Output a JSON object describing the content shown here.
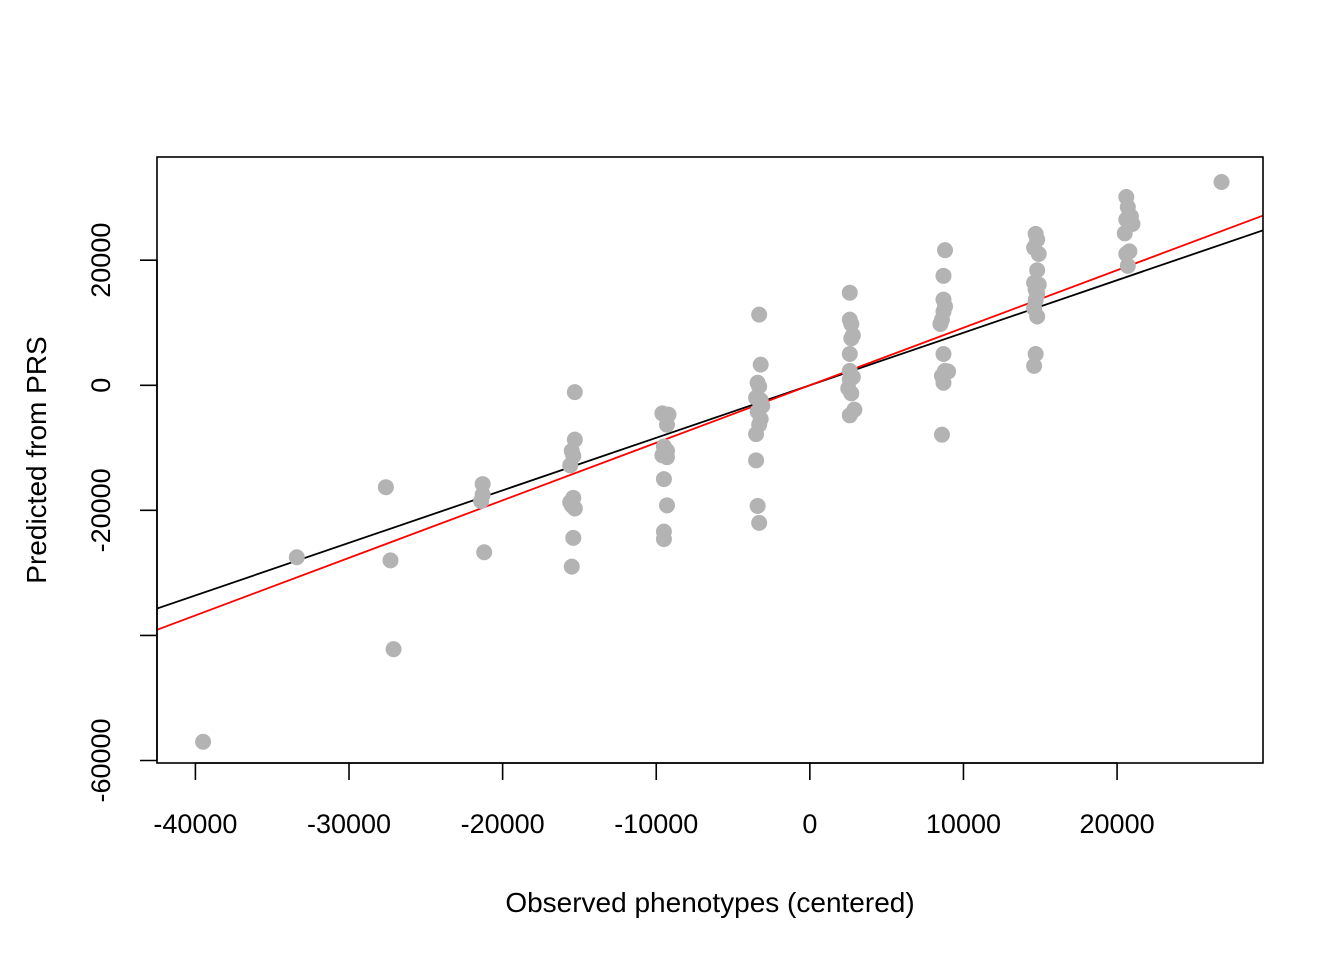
{
  "chart_data": {
    "type": "scatter",
    "title": "",
    "xlabel": "Observed phenotypes (centered)",
    "ylabel": "Predicted from PRS",
    "xlim": [
      -42500,
      29500
    ],
    "ylim": [
      -60400,
      36500
    ],
    "x_ticks": [
      -40000,
      -30000,
      -20000,
      -10000,
      0,
      10000,
      20000
    ],
    "x_tick_labels": [
      "-40000",
      "-30000",
      "-20000",
      "-10000",
      "0",
      "10000",
      "20000"
    ],
    "y_ticks": [
      -60000,
      -40000,
      -20000,
      0,
      20000
    ],
    "y_tick_labels": [
      "-60000",
      "",
      "-20000",
      "0",
      "20000"
    ],
    "grid": false,
    "legend": "none",
    "point_color": "#b3b3b3",
    "series": [
      {
        "values": [
          [
            -39500,
            -57000
          ],
          [
            -33400,
            -27500
          ],
          [
            -27600,
            -16300
          ],
          [
            -27300,
            -28000
          ],
          [
            -27100,
            -42200
          ],
          [
            -21300,
            -15800
          ],
          [
            -21300,
            -17500
          ],
          [
            -21400,
            -18500
          ],
          [
            -21200,
            -26700
          ],
          [
            -15300,
            -1100
          ],
          [
            -15300,
            -8700
          ],
          [
            -15500,
            -10500
          ],
          [
            -15400,
            -11300
          ],
          [
            -15600,
            -12800
          ],
          [
            -15400,
            -18000
          ],
          [
            -15600,
            -18700
          ],
          [
            -15500,
            -19200
          ],
          [
            -15300,
            -19700
          ],
          [
            -15400,
            -24400
          ],
          [
            -15500,
            -29000
          ],
          [
            -9600,
            -4500
          ],
          [
            -9200,
            -4700
          ],
          [
            -9300,
            -6300
          ],
          [
            -9500,
            -9800
          ],
          [
            -9300,
            -10500
          ],
          [
            -9600,
            -11200
          ],
          [
            -9300,
            -11500
          ],
          [
            -9500,
            -15000
          ],
          [
            -9300,
            -19200
          ],
          [
            -9500,
            -23400
          ],
          [
            -9500,
            -24600
          ],
          [
            -3300,
            11300
          ],
          [
            -3200,
            3300
          ],
          [
            -3400,
            400
          ],
          [
            -3300,
            -200
          ],
          [
            -3500,
            -2000
          ],
          [
            -3200,
            -2400
          ],
          [
            -3100,
            -3300
          ],
          [
            -3400,
            -4200
          ],
          [
            -3200,
            -5400
          ],
          [
            -3300,
            -6300
          ],
          [
            -3500,
            -7800
          ],
          [
            -3500,
            -12000
          ],
          [
            -3400,
            -19300
          ],
          [
            -3300,
            -22000
          ],
          [
            2600,
            14800
          ],
          [
            2600,
            10500
          ],
          [
            2700,
            9800
          ],
          [
            2800,
            8000
          ],
          [
            2700,
            7500
          ],
          [
            2600,
            5000
          ],
          [
            2600,
            2300
          ],
          [
            2800,
            1300
          ],
          [
            2600,
            900
          ],
          [
            2500,
            -500
          ],
          [
            2700,
            -1300
          ],
          [
            2900,
            -3900
          ],
          [
            2600,
            -4800
          ],
          [
            8800,
            21600
          ],
          [
            8700,
            17500
          ],
          [
            8700,
            13700
          ],
          [
            8800,
            12600
          ],
          [
            8700,
            11800
          ],
          [
            8600,
            10500
          ],
          [
            8500,
            9800
          ],
          [
            8700,
            5000
          ],
          [
            8800,
            2300
          ],
          [
            9000,
            2200
          ],
          [
            8600,
            1500
          ],
          [
            8700,
            400
          ],
          [
            8600,
            -7900
          ],
          [
            14700,
            24200
          ],
          [
            14800,
            23300
          ],
          [
            14600,
            22000
          ],
          [
            14900,
            21000
          ],
          [
            14800,
            18400
          ],
          [
            14600,
            16400
          ],
          [
            14900,
            16100
          ],
          [
            14700,
            15300
          ],
          [
            14800,
            14600
          ],
          [
            14700,
            13600
          ],
          [
            14600,
            12300
          ],
          [
            14800,
            11000
          ],
          [
            14700,
            5000
          ],
          [
            14600,
            3100
          ],
          [
            20600,
            30100
          ],
          [
            20700,
            28500
          ],
          [
            20900,
            27000
          ],
          [
            20600,
            26500
          ],
          [
            20800,
            26000
          ],
          [
            21000,
            25800
          ],
          [
            20500,
            24300
          ],
          [
            20800,
            21400
          ],
          [
            20600,
            21000
          ],
          [
            20700,
            19100
          ],
          [
            26800,
            32500
          ]
        ]
      }
    ],
    "lines": [
      {
        "slope": 0.84,
        "intercept": 0,
        "color": "#000000"
      },
      {
        "slope": 0.92,
        "intercept": 0,
        "color": "#ff0000"
      }
    ]
  }
}
